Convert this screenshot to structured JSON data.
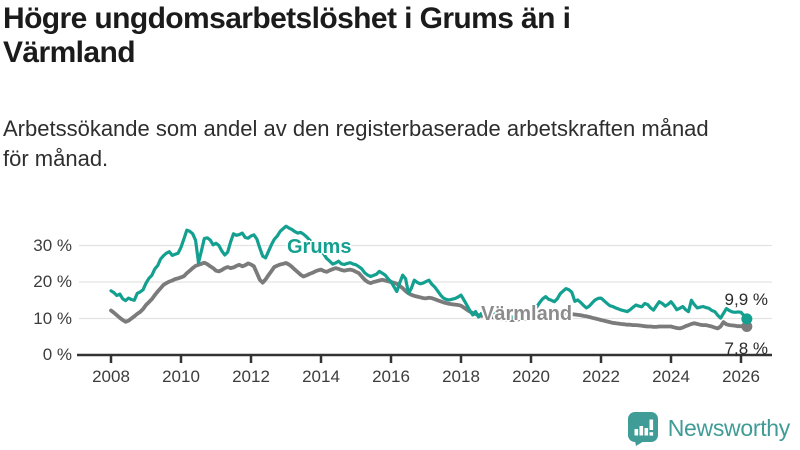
{
  "header": {
    "title_lines": [
      "Högre ungdomsarbetslöshet i Grums än i",
      "Värmland"
    ],
    "subtitle_lines": [
      "Arbetssökande som andel av den registerbaserade arbetskraften månad",
      "för månad."
    ]
  },
  "chart_data": {
    "type": "line",
    "title": "Högre ungdomsarbetslöshet i Grums än i Värmland",
    "subtitle": "Arbetssökande som andel av den registerbaserade arbetskraften månad för månad.",
    "xlabel": "",
    "ylabel": "",
    "unit": "%",
    "xlim": [
      2007.8,
      2026.8
    ],
    "ylim": [
      0,
      38
    ],
    "grid": "horizontal-only",
    "colors": {
      "grid": "#e3e3e3",
      "axis": "#333333"
    },
    "y_ticks": [
      {
        "v": 0,
        "label": "0 %"
      },
      {
        "v": 10,
        "label": "10 %"
      },
      {
        "v": 20,
        "label": "20 %"
      },
      {
        "v": 30,
        "label": "30 %"
      }
    ],
    "x_ticks": [
      {
        "v": 2008,
        "label": "2008"
      },
      {
        "v": 2010,
        "label": "2010"
      },
      {
        "v": 2012,
        "label": "2012"
      },
      {
        "v": 2014,
        "label": "2014"
      },
      {
        "v": 2016,
        "label": "2016"
      },
      {
        "v": 2018,
        "label": "2018"
      },
      {
        "v": 2020,
        "label": "2020"
      },
      {
        "v": 2022,
        "label": "2022"
      },
      {
        "v": 2024,
        "label": "2024"
      },
      {
        "v": 2026,
        "label": "2026"
      }
    ],
    "series": [
      {
        "name": "Grums",
        "color": "#14a090",
        "start_year": 2008,
        "samples_per_year": 12,
        "end_label": "9,9 %",
        "last_value_pct": 9.9,
        "values": [
          17.6,
          17.1,
          16.3,
          16.7,
          15.4,
          14.9,
          15.6,
          15.2,
          15.0,
          16.9,
          17.3,
          17.9,
          19.7,
          21.0,
          21.8,
          23.6,
          24.5,
          26.3,
          27.2,
          27.9,
          28.3,
          27.3,
          27.6,
          27.9,
          29.5,
          31.8,
          34.2,
          33.9,
          33.2,
          31.4,
          25.3,
          28.5,
          31.9,
          32.1,
          31.5,
          30.2,
          30.6,
          30.0,
          28.5,
          27.4,
          28.2,
          31.0,
          33.2,
          32.8,
          33.0,
          33.4,
          32.2,
          32.0,
          32.6,
          32.9,
          31.8,
          29.3,
          27.1,
          26.6,
          28.4,
          30.2,
          31.7,
          32.6,
          33.9,
          34.6,
          35.3,
          34.8,
          34.4,
          33.8,
          33.4,
          33.6,
          33.1,
          32.4,
          31.6,
          30.8,
          30.2,
          29.4,
          28.6,
          27.6,
          26.4,
          25.7,
          24.9,
          25.2,
          25.7,
          25.0,
          24.8,
          25.1,
          25.3,
          24.9,
          24.7,
          24.2,
          23.6,
          22.5,
          21.9,
          21.5,
          21.8,
          22.1,
          22.9,
          22.4,
          21.9,
          20.9,
          20.1,
          18.7,
          17.4,
          19.8,
          21.9,
          20.9,
          16.9,
          18.3,
          20.5,
          19.9,
          19.5,
          19.7,
          20.1,
          20.5,
          19.4,
          18.6,
          17.5,
          16.4,
          15.6,
          15.2,
          15.1,
          15.3,
          15.5,
          15.9,
          16.4,
          15.1,
          13.7,
          12.2,
          11.0,
          11.9,
          10.4,
          11.4,
          11.8,
          11.5,
          11.2,
          11.6,
          12.0,
          11.7,
          11.4,
          11.1,
          10.8,
          10.5,
          10.3,
          10.4,
          10.6,
          10.8,
          11.0,
          11.2,
          11.3,
          12.3,
          13.2,
          14.4,
          15.4,
          16.0,
          15.3,
          15.0,
          14.6,
          15.4,
          16.8,
          17.5,
          18.2,
          17.9,
          17.2,
          14.7,
          15.1,
          14.4,
          13.6,
          12.9,
          13.4,
          14.3,
          15.1,
          15.5,
          15.6,
          14.9,
          14.2,
          13.5,
          13.3,
          12.9,
          12.6,
          12.3,
          12.1,
          11.9,
          12.4,
          13.1,
          13.7,
          13.4,
          13.2,
          14.1,
          13.8,
          12.9,
          12.3,
          13.5,
          14.6,
          14.1,
          13.4,
          13.9,
          14.6,
          13.6,
          12.4,
          12.8,
          13.3,
          12.4,
          11.9,
          15.0,
          13.8,
          12.9,
          13.1,
          13.3,
          13.0,
          12.8,
          12.2,
          11.9,
          10.9,
          10.1,
          11.4,
          12.7,
          12.2,
          11.8,
          11.7,
          11.8,
          11.7,
          10.8,
          9.9
        ]
      },
      {
        "name": "Värmland",
        "color": "#7b7b7b",
        "start_year": 2008,
        "samples_per_year": 12,
        "end_label": "7,8 %",
        "last_value_pct": 7.8,
        "values": [
          12.2,
          11.6,
          10.9,
          10.2,
          9.6,
          9.1,
          9.4,
          10.0,
          10.6,
          11.3,
          11.8,
          12.6,
          13.7,
          14.5,
          15.3,
          16.4,
          17.4,
          18.3,
          19.2,
          19.7,
          20.1,
          20.4,
          20.8,
          21.0,
          21.3,
          21.6,
          22.4,
          23.1,
          23.8,
          24.4,
          24.7,
          25.0,
          25.3,
          24.9,
          24.3,
          23.8,
          23.1,
          22.9,
          23.3,
          23.8,
          24.1,
          23.8,
          24.0,
          24.4,
          24.7,
          24.3,
          24.6,
          25.1,
          24.8,
          24.3,
          22.5,
          20.6,
          19.8,
          20.7,
          21.9,
          23.0,
          24.1,
          24.5,
          24.8,
          25.0,
          25.2,
          24.8,
          24.2,
          23.4,
          22.7,
          22.0,
          21.5,
          21.8,
          22.2,
          22.5,
          22.9,
          23.2,
          23.4,
          23.0,
          22.8,
          23.2,
          23.5,
          23.8,
          23.6,
          23.3,
          23.1,
          23.3,
          23.4,
          23.2,
          22.8,
          22.4,
          21.5,
          20.6,
          20.0,
          19.7,
          20.0,
          20.2,
          20.4,
          20.6,
          20.4,
          20.2,
          20.0,
          19.8,
          19.5,
          18.9,
          18.3,
          17.5,
          16.9,
          16.5,
          16.2,
          16.0,
          15.8,
          15.6,
          15.5,
          15.7,
          15.6,
          15.3,
          15.0,
          14.7,
          14.4,
          14.2,
          14.0,
          13.9,
          13.8,
          13.7,
          13.5,
          13.0,
          12.4,
          11.9,
          11.5,
          11.2,
          10.9,
          10.7,
          11.0,
          10.8,
          10.5,
          10.3,
          10.2,
          10.0,
          9.9,
          9.8,
          9.7,
          9.6,
          9.6,
          9.7,
          9.8,
          9.9,
          10.0,
          10.2,
          10.5,
          10.8,
          11.3,
          11.7,
          12.0,
          11.9,
          11.8,
          11.7,
          11.6,
          11.5,
          11.5,
          11.4,
          11.4,
          11.3,
          11.2,
          11.1,
          11.0,
          10.9,
          10.7,
          10.6,
          10.4,
          10.2,
          10.0,
          9.8,
          9.6,
          9.4,
          9.2,
          9.0,
          8.8,
          8.7,
          8.6,
          8.5,
          8.4,
          8.3,
          8.3,
          8.2,
          8.2,
          8.1,
          8.0,
          7.9,
          7.8,
          7.8,
          7.7,
          7.7,
          7.8,
          7.8,
          7.8,
          7.8,
          7.8,
          7.6,
          7.4,
          7.3,
          7.5,
          7.9,
          8.2,
          8.5,
          8.7,
          8.5,
          8.3,
          8.2,
          8.2,
          8.0,
          7.8,
          7.5,
          7.3,
          7.8,
          9.0,
          8.4,
          8.2,
          8.1,
          8.0,
          7.9,
          7.9,
          7.8,
          7.8
        ]
      }
    ]
  },
  "footer": {
    "brand": "Newsworthy",
    "logo_icon": "bar-chart-speech-bubble-icon",
    "accent_color": "#3f9c96"
  }
}
